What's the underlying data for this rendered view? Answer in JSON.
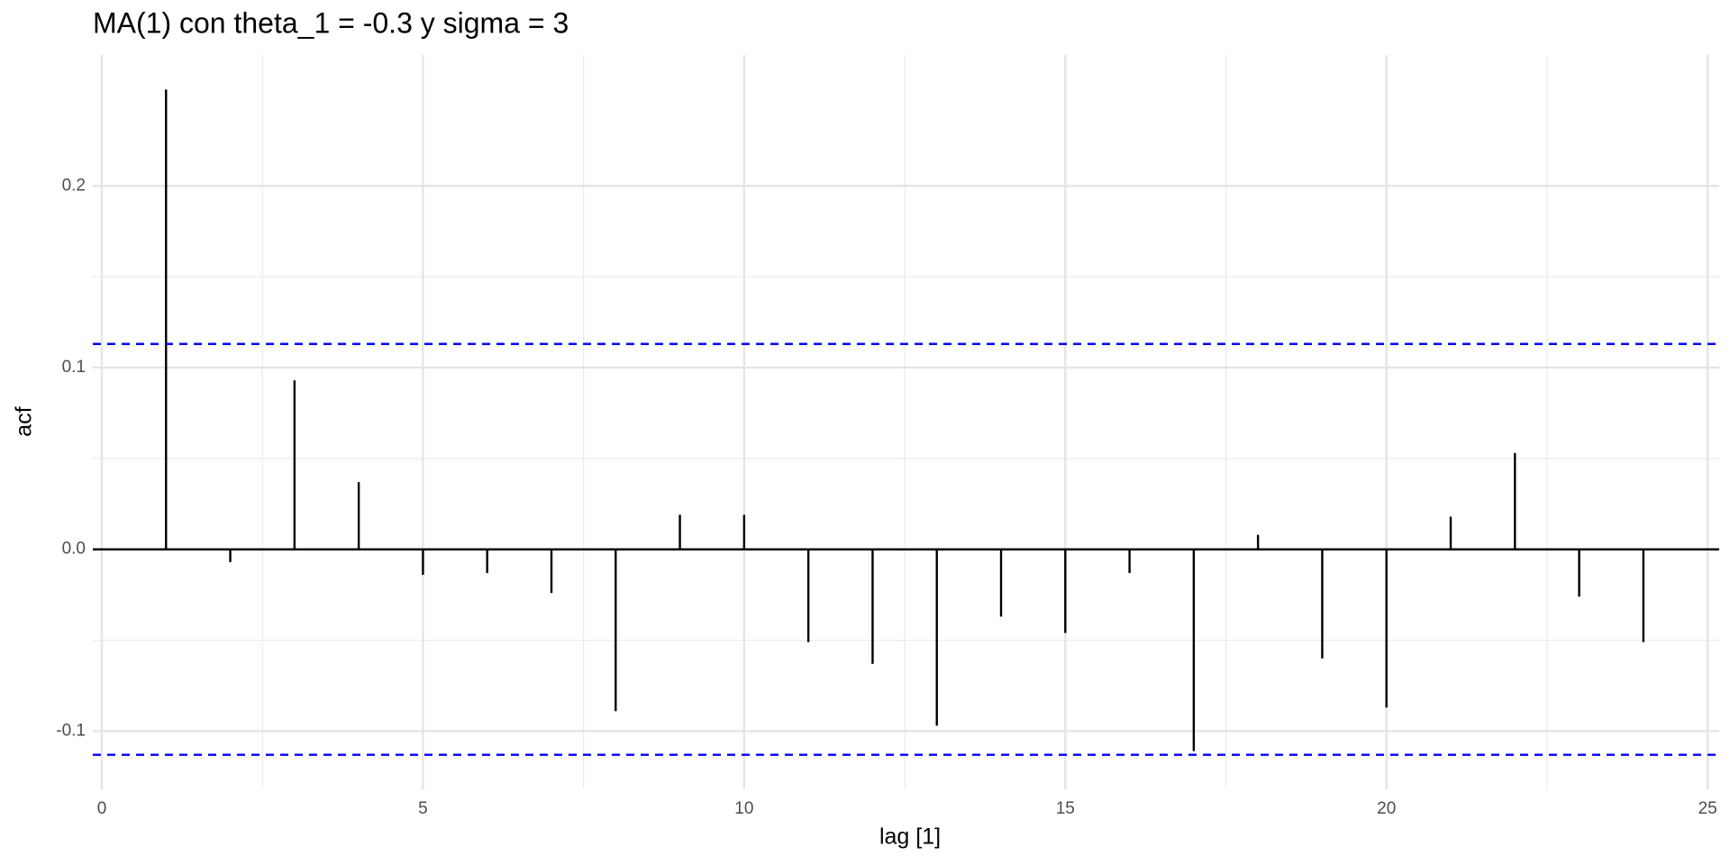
{
  "chart_data": {
    "type": "acf",
    "title": "MA(1) con theta_1 = -0.3 y sigma = 3",
    "x_label": "lag [1]",
    "y_label": "acf",
    "x": [
      1,
      2,
      3,
      4,
      5,
      6,
      7,
      8,
      9,
      10,
      11,
      12,
      13,
      14,
      15,
      16,
      17,
      18,
      19,
      20,
      21,
      22,
      23,
      24
    ],
    "values": [
      0.253,
      -0.007,
      0.093,
      0.037,
      -0.014,
      -0.013,
      -0.024,
      -0.089,
      0.019,
      0.019,
      -0.051,
      -0.063,
      -0.097,
      -0.037,
      -0.046,
      -0.013,
      -0.111,
      0.008,
      -0.06,
      -0.087,
      0.018,
      0.053,
      -0.026,
      -0.051
    ],
    "color": "#000000",
    "confidence_bounds": [
      -0.113,
      0.113
    ],
    "confidence_color": "#0000ff",
    "xlim": [
      -0.14,
      25.18
    ],
    "ylim": [
      -0.132,
      0.272
    ],
    "xticks": [
      0,
      5,
      10,
      15,
      20,
      25
    ],
    "yticks": [
      -0.1,
      {
        "value": 0,
        "label": "0.0"
      },
      0.1,
      0.2
    ],
    "grid": true
  }
}
